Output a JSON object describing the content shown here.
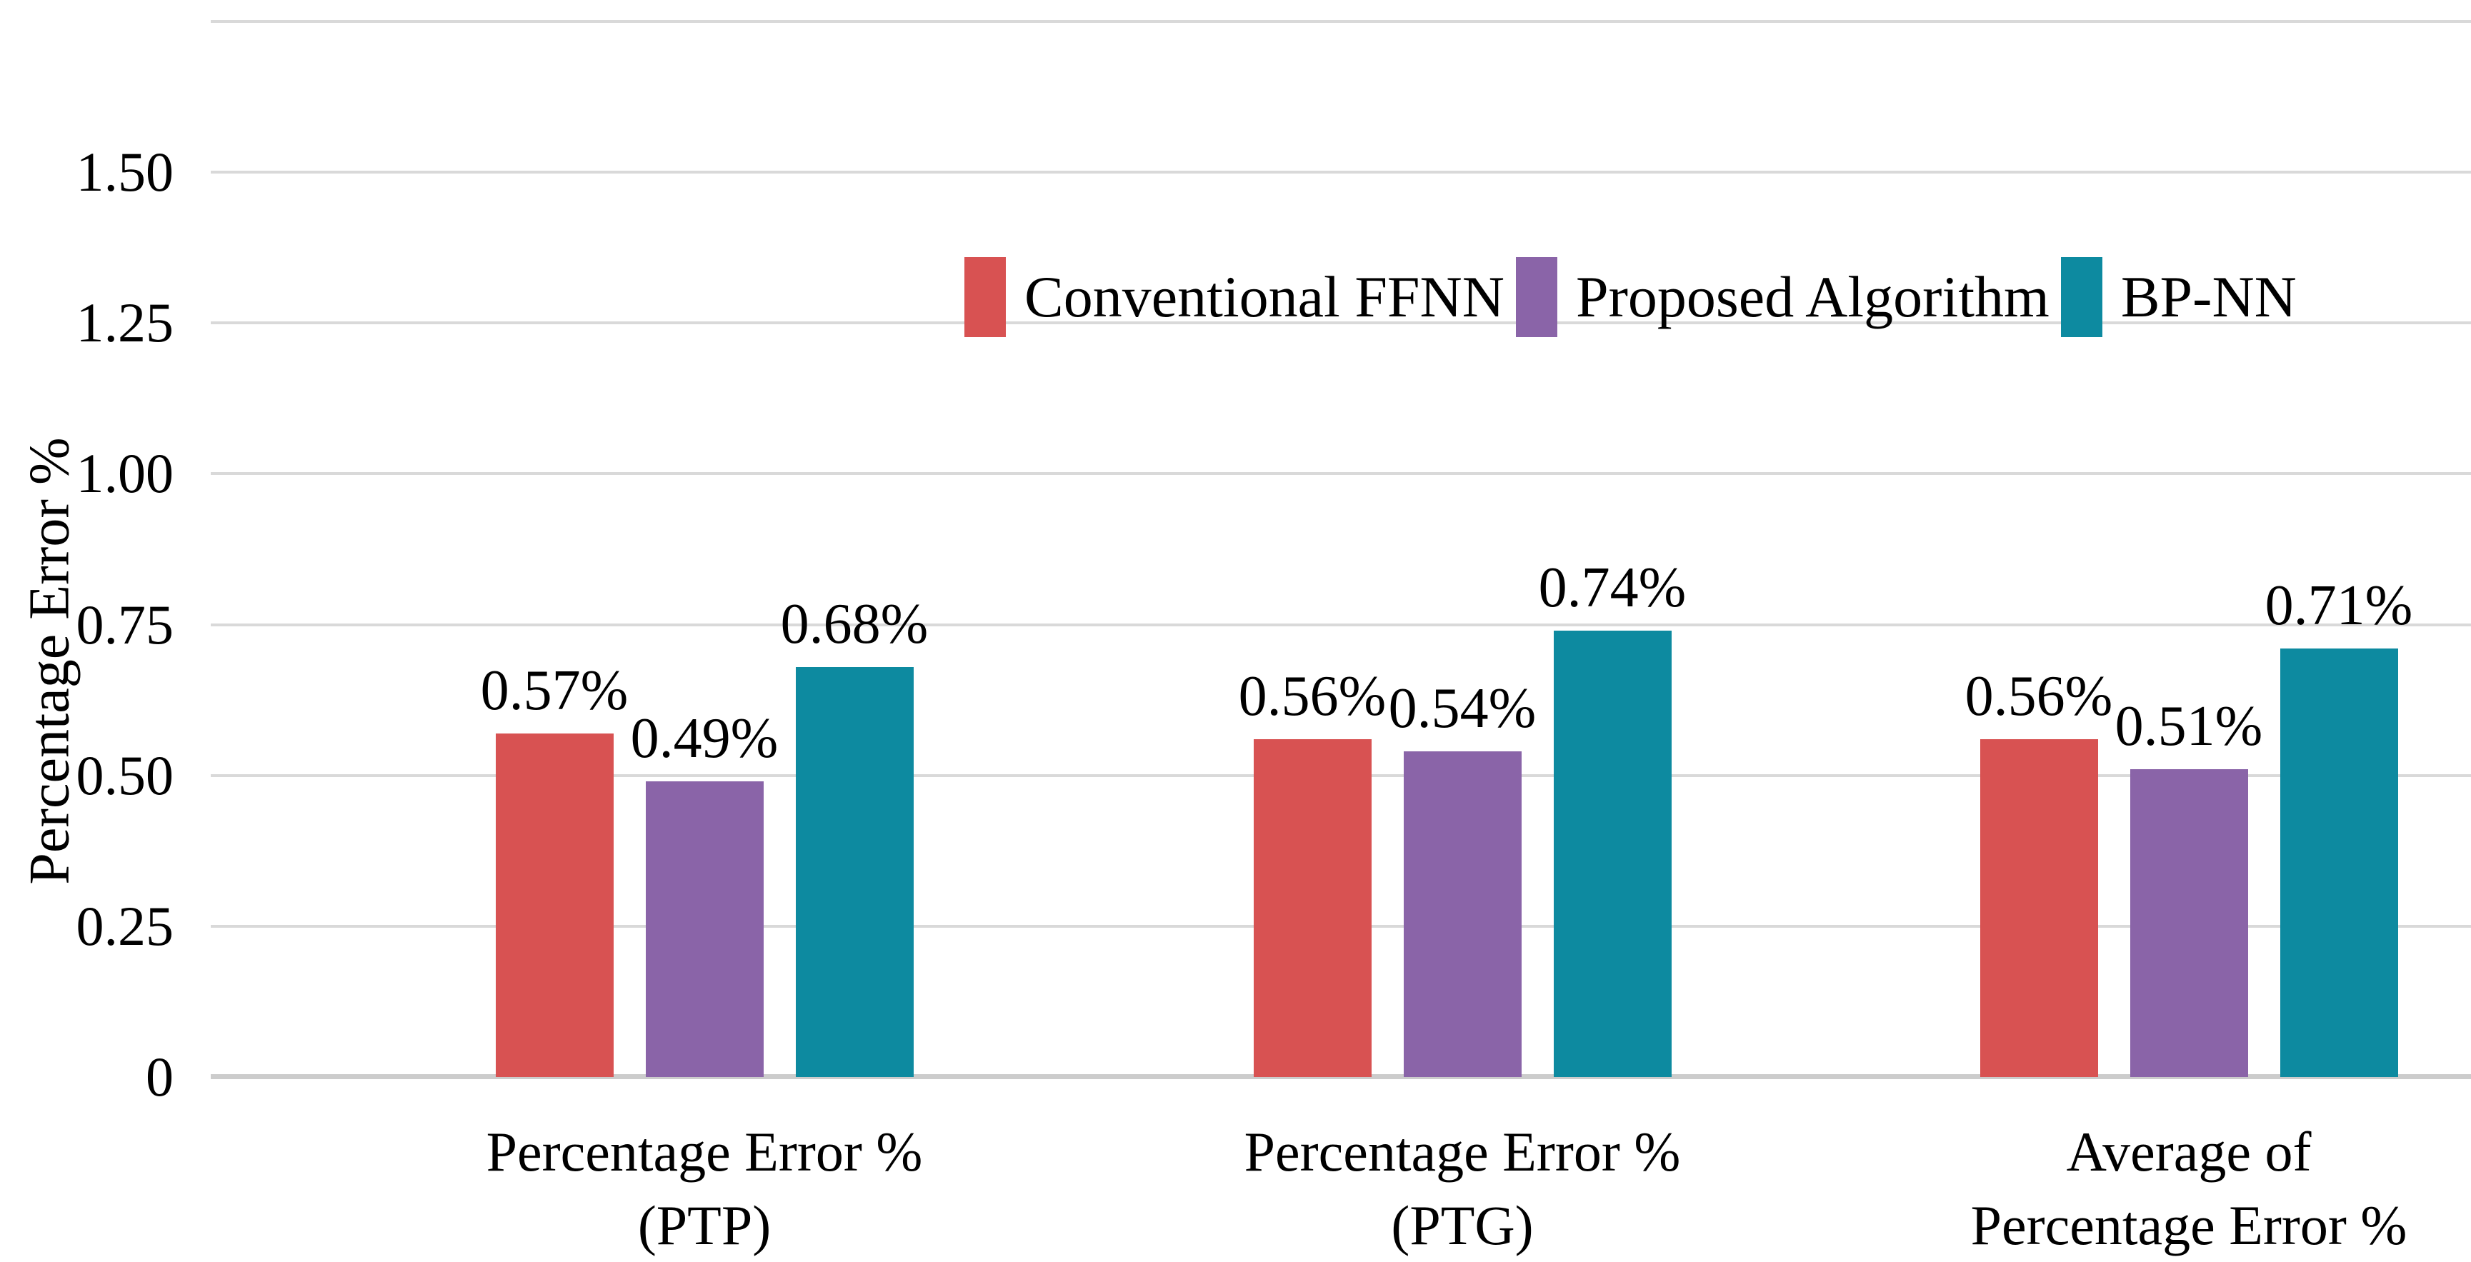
{
  "chart_data": {
    "type": "bar",
    "title": "",
    "ylabel": "Percentage Error %",
    "xlabel": "",
    "ylim": [
      0,
      1.75
    ],
    "grid": true,
    "legend_position": "top-center-inside",
    "y_ticks": [
      {
        "value": 0,
        "label": "0"
      },
      {
        "value": 0.25,
        "label": "0.25"
      },
      {
        "value": 0.5,
        "label": "0.50"
      },
      {
        "value": 0.75,
        "label": "0.75"
      },
      {
        "value": 1.0,
        "label": "1.00"
      },
      {
        "value": 1.25,
        "label": "1.25"
      },
      {
        "value": 1.5,
        "label": "1.50"
      },
      {
        "value": 1.75,
        "label": ""
      }
    ],
    "categories": [
      {
        "lines": [
          "Percentage Error %",
          "(PTP)"
        ],
        "center_x": 986
      },
      {
        "lines": [
          "Percentage Error %",
          "(PTG)"
        ],
        "center_x": 2047
      },
      {
        "lines": [
          "Average of",
          "Percentage Error %"
        ],
        "center_x": 3064
      }
    ],
    "series": [
      {
        "name": "Conventional FFNN",
        "color": "#d85252",
        "values": [
          0.57,
          0.56,
          0.56
        ],
        "data_labels": [
          "0.57%",
          "0.56%",
          "0.56%"
        ]
      },
      {
        "name": "Proposed Algorithm",
        "color": "#8a64a8",
        "values": [
          0.49,
          0.54,
          0.51
        ],
        "data_labels": [
          "0.49%",
          "0.54%",
          "0.51%"
        ]
      },
      {
        "name": "BP-NN",
        "color": "#0d8aa0",
        "values": [
          0.68,
          0.74,
          0.71
        ],
        "data_labels": [
          "0.68%",
          "0.74%",
          "0.71%"
        ]
      }
    ]
  }
}
